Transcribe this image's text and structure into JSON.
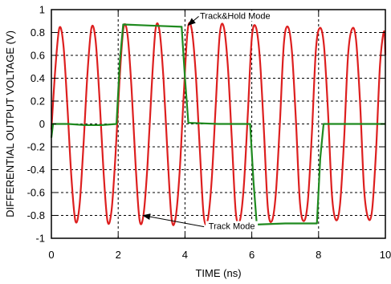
{
  "chart_data": {
    "type": "line",
    "title": "",
    "xlabel": "TIME (ns)",
    "ylabel": "DIFFERENTIAL OUTPUT VOLTAGE (V)",
    "xlim": [
      0,
      10
    ],
    "ylim": [
      -1,
      1
    ],
    "xticks": [
      "0",
      "2",
      "4",
      "6",
      "8",
      "10"
    ],
    "yticks": [
      "1",
      "0.8",
      "0.6",
      "0.4",
      "0.2",
      "0",
      "-0.2",
      "-0.4",
      "-0.6",
      "-0.8",
      "-1"
    ],
    "grid": "dashed",
    "colors": {
      "track": "#dd1f1f",
      "track_hold": "#1f8a1f"
    },
    "series": [
      {
        "name": "Track Mode",
        "color": "#dd1f1f",
        "x": [
          0,
          0.12,
          0.24,
          0.36,
          0.48,
          0.6,
          0.72,
          0.84,
          0.96,
          1.08,
          1.2,
          1.32,
          1.44,
          1.56,
          1.68,
          1.8,
          1.92,
          2.04,
          2.16,
          2.28,
          2.4,
          2.52,
          2.64,
          2.76,
          2.88,
          3.0,
          3.12,
          3.24,
          3.36,
          3.48,
          3.6,
          3.72,
          3.84,
          3.96,
          4.08,
          4.2,
          4.32,
          4.44,
          4.56,
          4.68,
          4.8,
          4.92,
          5.04,
          5.16,
          5.28,
          5.4,
          5.52,
          5.64,
          5.76,
          5.88,
          6.0,
          6.12,
          6.24,
          6.36,
          6.48,
          6.6,
          6.72,
          6.84,
          6.96,
          7.08,
          7.2,
          7.32,
          7.44,
          7.56,
          7.68,
          7.8,
          7.92,
          8.04,
          8.16,
          8.28,
          8.4,
          8.52,
          8.64,
          8.76,
          8.88,
          9.0,
          9.12,
          9.24,
          9.36,
          9.48,
          9.6,
          9.72,
          9.84,
          9.96,
          10.0
        ],
        "y": [
          -0.05,
          0.49,
          0.84,
          0.69,
          0.15,
          -0.47,
          -0.85,
          -0.72,
          -0.19,
          0.44,
          0.84,
          0.74,
          0.23,
          -0.41,
          -0.85,
          -0.76,
          -0.27,
          0.38,
          0.84,
          0.78,
          0.31,
          -0.35,
          -0.84,
          -0.79,
          -0.35,
          0.31,
          0.83,
          0.81,
          0.38,
          -0.28,
          -0.83,
          -0.82,
          -0.42,
          0.24,
          0.82,
          0.83,
          0.45,
          -0.2,
          -0.8,
          -0.84,
          -0.49,
          0.16,
          0.78,
          0.85,
          0.52,
          -0.12,
          -0.77,
          -0.85,
          -0.55,
          0.08,
          0.75,
          0.85,
          0.58,
          -0.04,
          -0.73,
          -0.85,
          -0.61,
          0.0,
          0.7,
          0.85,
          0.64,
          0.04,
          -0.68,
          -0.85,
          -0.67,
          -0.08,
          0.65,
          0.84,
          0.69,
          0.12,
          -0.62,
          -0.84,
          -0.71,
          -0.16,
          0.59,
          0.83,
          0.74,
          0.2,
          -0.56,
          -0.82,
          -0.76,
          -0.24,
          0.52,
          0.81,
          0.6
        ]
      },
      {
        "name": "Track&Hold Mode",
        "color": "#1f8a1f",
        "x": [
          0,
          0.05,
          0.1,
          0.5,
          1.0,
          1.5,
          1.95,
          2.05,
          2.15,
          3.0,
          3.9,
          4.0,
          4.1,
          5.0,
          5.95,
          6.05,
          6.15,
          7.0,
          7.95,
          8.05,
          8.15,
          9.0,
          10.0
        ],
        "y": [
          -0.12,
          0.0,
          0.0,
          0.0,
          -0.01,
          -0.01,
          0.0,
          0.55,
          0.87,
          0.86,
          0.85,
          0.4,
          0.01,
          0.0,
          0.0,
          -0.5,
          -0.88,
          -0.87,
          -0.87,
          -0.3,
          0.0,
          0.0,
          0.0
        ]
      }
    ],
    "annotations": [
      {
        "text": "Track&Hold Mode",
        "x": 5.5,
        "y": 0.92,
        "arrow_to": [
          4.0,
          0.85
        ]
      },
      {
        "text": "Track Mode",
        "x": 5.4,
        "y": -0.92,
        "arrow_to": [
          2.6,
          -0.8
        ]
      }
    ]
  }
}
